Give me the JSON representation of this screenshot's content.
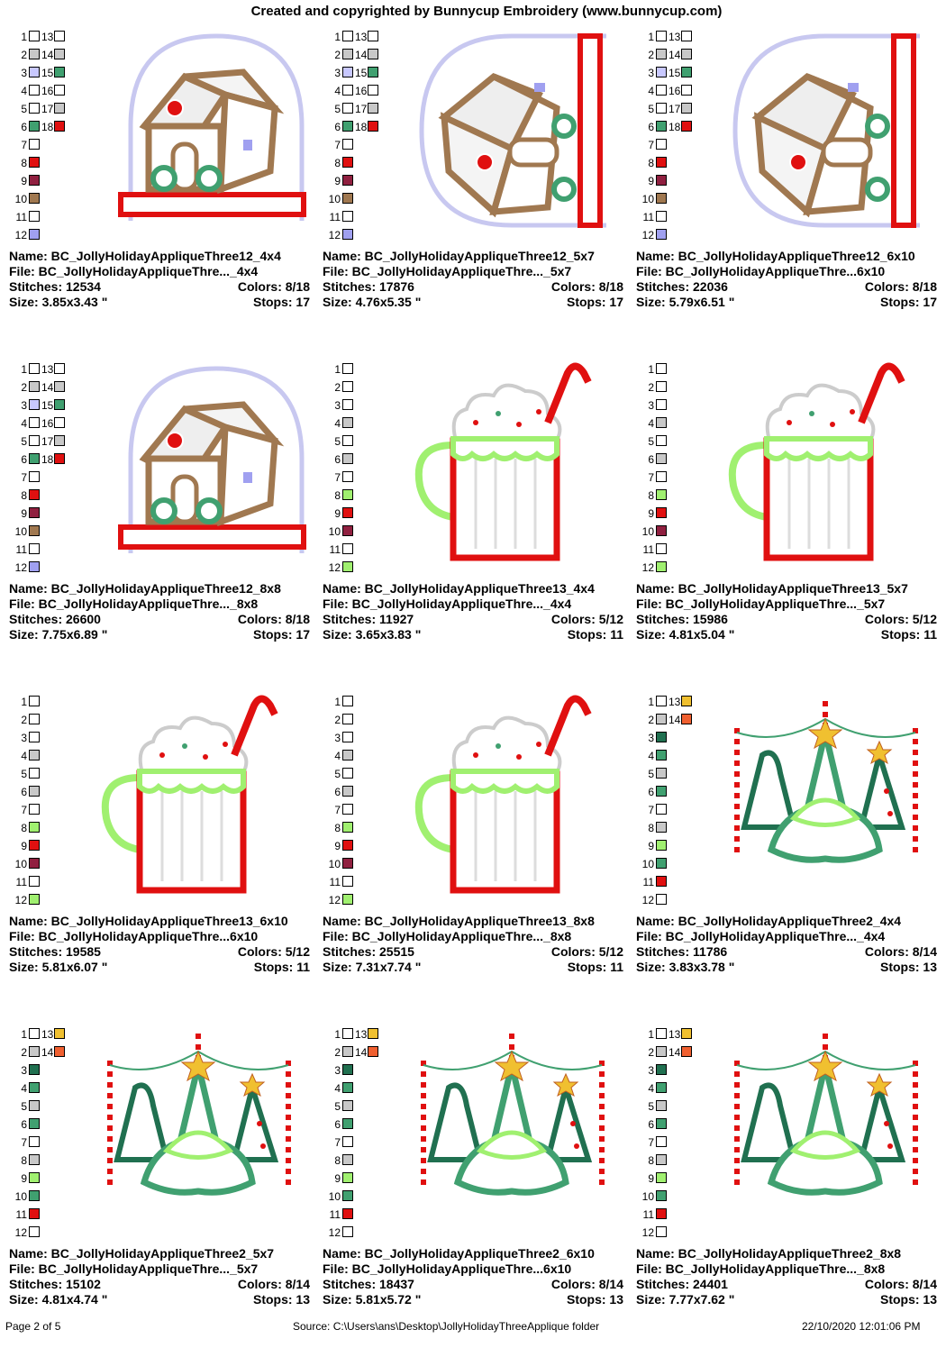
{
  "header": "Created and copyrighted by Bunnycup Embroidery (www.bunnycup.com)",
  "palettes": {
    "house": [
      "#ffffff",
      "#c8c8c8",
      "#c8c8ff",
      "#ffffff",
      "#ffffff",
      "#40a070",
      "#ffffff",
      "#e01010",
      "#902040",
      "#a07850",
      "#ffffff",
      "#a0a0f0",
      "#ffffff",
      "#c8c8c8",
      "#40a070",
      "#ffffff",
      "#c8c8c8",
      "#e01010"
    ],
    "mug": [
      "#ffffff",
      "#ffffff",
      "#ffffff",
      "#c8c8c8",
      "#ffffff",
      "#c8c8c8",
      "#ffffff",
      "#a0f070",
      "#e01010",
      "#902040",
      "#ffffff",
      "#a0f070"
    ],
    "tree": [
      "#ffffff",
      "#c8c8c8",
      "#207050",
      "#40a070",
      "#c8c8c8",
      "#40a070",
      "#ffffff",
      "#c8c8c8",
      "#a0f070",
      "#40a070",
      "#e01010",
      "#ffffff",
      "#f0c030",
      "#f06030"
    ]
  },
  "designs": [
    {
      "name": "Name: BC_JollyHolidayAppliqueThree12_4x4",
      "file": "File: BC_JollyHolidayAppliqueThre..._4x4",
      "stitches": "Stitches: 12534",
      "colors": "Colors: 8/18",
      "size": "Size: 3.85x3.43 \"",
      "stops": "Stops: 17",
      "art": "globe",
      "palette": "house"
    },
    {
      "name": "Name: BC_JollyHolidayAppliqueThree12_5x7",
      "file": "File: BC_JollyHolidayAppliqueThre..._5x7",
      "stitches": "Stitches: 17876",
      "colors": "Colors: 8/18",
      "size": "Size: 4.76x5.35 \"",
      "stops": "Stops: 17",
      "art": "globe-rot",
      "palette": "house"
    },
    {
      "name": "Name: BC_JollyHolidayAppliqueThree12_6x10",
      "file": "File: BC_JollyHolidayAppliqueThre...6x10",
      "stitches": "Stitches: 22036",
      "colors": "Colors: 8/18",
      "size": "Size: 5.79x6.51 \"",
      "stops": "Stops: 17",
      "art": "globe-rot",
      "palette": "house"
    },
    {
      "name": "Name: BC_JollyHolidayAppliqueThree12_8x8",
      "file": "File: BC_JollyHolidayAppliqueThre..._8x8",
      "stitches": "Stitches: 26600",
      "colors": "Colors: 8/18",
      "size": "Size: 7.75x6.89 \"",
      "stops": "Stops: 17",
      "art": "globe",
      "palette": "house"
    },
    {
      "name": "Name: BC_JollyHolidayAppliqueThree13_4x4",
      "file": "File: BC_JollyHolidayAppliqueThre..._4x4",
      "stitches": "Stitches: 11927",
      "colors": "Colors: 5/12",
      "size": "Size: 3.65x3.83 \"",
      "stops": "Stops: 11",
      "art": "mug",
      "palette": "mug"
    },
    {
      "name": "Name: BC_JollyHolidayAppliqueThree13_5x7",
      "file": "File: BC_JollyHolidayAppliqueThre..._5x7",
      "stitches": "Stitches: 15986",
      "colors": "Colors: 5/12",
      "size": "Size: 4.81x5.04 \"",
      "stops": "Stops: 11",
      "art": "mug",
      "palette": "mug"
    },
    {
      "name": "Name: BC_JollyHolidayAppliqueThree13_6x10",
      "file": "File: BC_JollyHolidayAppliqueThre...6x10",
      "stitches": "Stitches: 19585",
      "colors": "Colors: 5/12",
      "size": "Size: 5.81x6.07 \"",
      "stops": "Stops: 11",
      "art": "mug",
      "palette": "mug"
    },
    {
      "name": "Name: BC_JollyHolidayAppliqueThree13_8x8",
      "file": "File: BC_JollyHolidayAppliqueThre..._8x8",
      "stitches": "Stitches: 25515",
      "colors": "Colors: 5/12",
      "size": "Size: 7.31x7.74 \"",
      "stops": "Stops: 11",
      "art": "mug",
      "palette": "mug"
    },
    {
      "name": "Name: BC_JollyHolidayAppliqueThree2_4x4",
      "file": "File: BC_JollyHolidayAppliqueThre..._4x4",
      "stitches": "Stitches: 11786",
      "colors": "Colors: 8/14",
      "size": "Size: 3.83x3.78 \"",
      "stops": "Stops: 13",
      "art": "trees",
      "palette": "tree"
    },
    {
      "name": "Name: BC_JollyHolidayAppliqueThree2_5x7",
      "file": "File: BC_JollyHolidayAppliqueThre..._5x7",
      "stitches": "Stitches: 15102",
      "colors": "Colors: 8/14",
      "size": "Size: 4.81x4.74 \"",
      "stops": "Stops: 13",
      "art": "trees",
      "palette": "tree"
    },
    {
      "name": "Name: BC_JollyHolidayAppliqueThree2_6x10",
      "file": "File: BC_JollyHolidayAppliqueThre...6x10",
      "stitches": "Stitches: 18437",
      "colors": "Colors: 8/14",
      "size": "Size: 5.81x5.72 \"",
      "stops": "Stops: 13",
      "art": "trees",
      "palette": "tree"
    },
    {
      "name": "Name: BC_JollyHolidayAppliqueThree2_8x8",
      "file": "File: BC_JollyHolidayAppliqueThre..._8x8",
      "stitches": "Stitches: 24401",
      "colors": "Colors: 8/14",
      "size": "Size: 7.77x7.62 \"",
      "stops": "Stops: 13",
      "art": "trees",
      "palette": "tree"
    }
  ],
  "footer": {
    "page": "Page 2 of 5",
    "source": "Source: C:\\Users\\ans\\Desktop\\JollyHolidayThreeApplique folder",
    "timestamp": "22/10/2020 12:01:06 PM"
  }
}
